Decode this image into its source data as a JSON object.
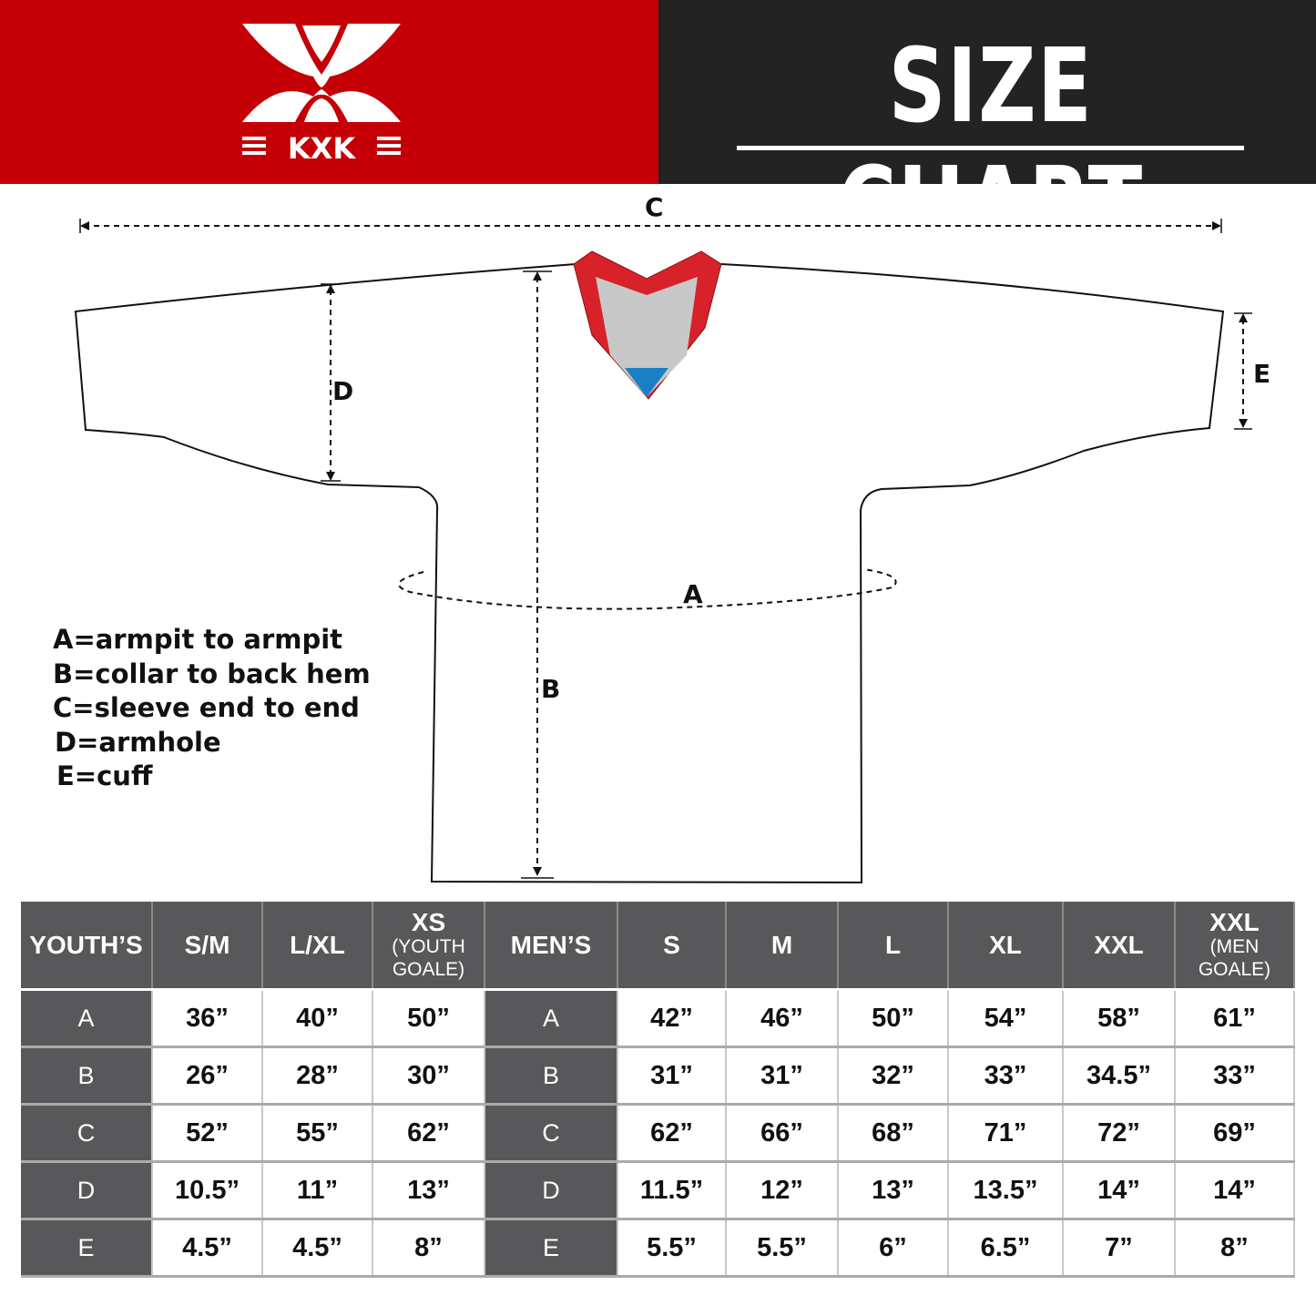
{
  "header": {
    "brand_text": "KXK",
    "title": "SIZE CHART",
    "colors": {
      "brand_red": "#c40006",
      "dark": "#232323",
      "collar_red": "#d8222a",
      "collar_gray": "#c8c8c8",
      "collar_blue": "#1a7fc4"
    }
  },
  "diagram": {
    "labels": {
      "a": "A",
      "b": "B",
      "c": "C",
      "d": "D",
      "e": "E"
    },
    "legend": [
      "A=armpit to armpit",
      "B=collar to back hem",
      "C=sleeve end to end",
      "D=armhole",
      "E=cuff"
    ]
  },
  "table": {
    "headers": [
      {
        "main": "YOUTH’S",
        "sub": ""
      },
      {
        "main": "S/M",
        "sub": ""
      },
      {
        "main": "L/XL",
        "sub": ""
      },
      {
        "main": "XS",
        "sub": "(YOUTH GOALE)"
      },
      {
        "main": "MEN’S",
        "sub": ""
      },
      {
        "main": "S",
        "sub": ""
      },
      {
        "main": "M",
        "sub": ""
      },
      {
        "main": "L",
        "sub": ""
      },
      {
        "main": "XL",
        "sub": ""
      },
      {
        "main": "XXL",
        "sub": ""
      },
      {
        "main": "XXL",
        "sub": "(MEN GOALE)"
      }
    ],
    "rows": [
      {
        "label": "A",
        "youth": [
          "36”",
          "40”",
          "50”"
        ],
        "men": [
          "42”",
          "46”",
          "50”",
          "54”",
          "58”",
          "61”"
        ]
      },
      {
        "label": "B",
        "youth": [
          "26”",
          "28”",
          "30”"
        ],
        "men": [
          "31”",
          "31”",
          "32”",
          "33”",
          "34.5”",
          "33”"
        ]
      },
      {
        "label": "C",
        "youth": [
          "52”",
          "55”",
          "62”"
        ],
        "men": [
          "62”",
          "66”",
          "68”",
          "71”",
          "72”",
          "69”"
        ]
      },
      {
        "label": "D",
        "youth": [
          "10.5”",
          "11”",
          "13”"
        ],
        "men": [
          "11.5”",
          "12”",
          "13”",
          "13.5”",
          "14”",
          "14”"
        ]
      },
      {
        "label": "E",
        "youth": [
          "4.5”",
          "4.5”",
          "8”"
        ],
        "men": [
          "5.5”",
          "5.5”",
          "6”",
          "6.5”",
          "7”",
          "8”"
        ]
      }
    ]
  }
}
